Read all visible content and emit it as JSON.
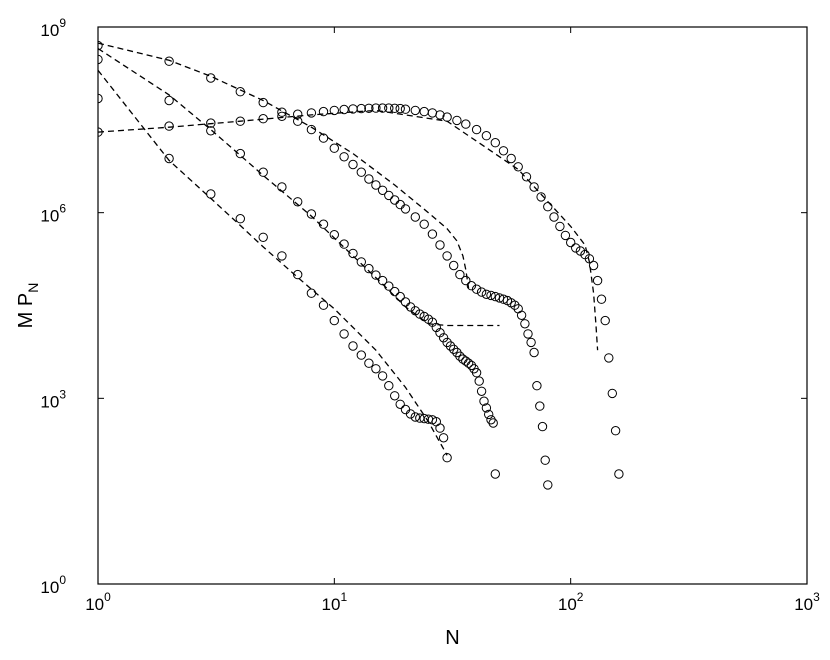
{
  "chart_data": {
    "type": "scatter",
    "title": "",
    "x_scale": "log",
    "y_scale": "log",
    "xlim": [
      1,
      1000
    ],
    "ylim": [
      1,
      1000000000
    ],
    "grid": false,
    "legend": "none",
    "xlabel": "N",
    "ylabel": {
      "main": "M P",
      "subscript": "N"
    },
    "x_ticks": [
      {
        "value": 1,
        "base": "10",
        "exp": "0"
      },
      {
        "value": 10,
        "base": "10",
        "exp": "1"
      },
      {
        "value": 100,
        "base": "10",
        "exp": "2"
      },
      {
        "value": 1000,
        "base": "10",
        "exp": "3"
      }
    ],
    "y_ticks": [
      {
        "value": 1,
        "base": "10",
        "exp": "0"
      },
      {
        "value": 1000,
        "base": "10",
        "exp": "3"
      },
      {
        "value": 1000000,
        "base": "10",
        "exp": "6"
      },
      {
        "value": 1000000000,
        "base": "10",
        "exp": "9"
      }
    ],
    "colors": {
      "markers": "#000000",
      "fit_lines": "#000000",
      "axes": "#000000"
    },
    "series": [
      {
        "style": "circles",
        "x": [
          1,
          2,
          3,
          4,
          5,
          6,
          7,
          8,
          9,
          10,
          11,
          12,
          13,
          14,
          15,
          16,
          17,
          18,
          19,
          20,
          21,
          22,
          23,
          24,
          25,
          26,
          27,
          28,
          29,
          30
        ],
        "y": [
          70000000,
          7500000,
          2000000,
          800000,
          400000,
          200000,
          100000,
          50000,
          32000,
          18000,
          11000,
          7000,
          5000,
          3700,
          3000,
          2300,
          1600,
          1100,
          800,
          660,
          560,
          500,
          480,
          470,
          460,
          450,
          420,
          330,
          230,
          110
        ]
      },
      {
        "style": "circles",
        "x": [
          1,
          2,
          3,
          4,
          5,
          6,
          7,
          8,
          9,
          10,
          11,
          12,
          13,
          14,
          15,
          16,
          17,
          18,
          19,
          20,
          21,
          22,
          23,
          24,
          25,
          26,
          27,
          28,
          29,
          30,
          31,
          32,
          33,
          34,
          35,
          36,
          37,
          38,
          39,
          40,
          41,
          42,
          43,
          44,
          45,
          46,
          47,
          48
        ],
        "y": [
          300000000,
          65000000,
          21000000,
          9000000,
          4500000,
          2600000,
          1500000,
          950000,
          650000,
          440000,
          310000,
          220000,
          160000,
          125000,
          98000,
          80000,
          65000,
          53000,
          44000,
          36000,
          30000,
          26000,
          23000,
          21000,
          19000,
          17000,
          14000,
          11500,
          9500,
          8000,
          7000,
          6200,
          5500,
          4800,
          4300,
          4000,
          3700,
          3400,
          3000,
          2600,
          1900,
          1300,
          900,
          700,
          550,
          450,
          400,
          60
        ]
      },
      {
        "style": "circles",
        "x": [
          1,
          2,
          3,
          4,
          5,
          6,
          7,
          8,
          9,
          10,
          11,
          12,
          13,
          14,
          15,
          16,
          17,
          18,
          19,
          20,
          22,
          24,
          26,
          28,
          30,
          32,
          34,
          36,
          38,
          40,
          42,
          44,
          46,
          48,
          50,
          52,
          54,
          56,
          58,
          60,
          62,
          64,
          66,
          68,
          70,
          72,
          74,
          76,
          78,
          80
        ],
        "y": [
          500000000,
          280000000,
          150000000,
          90000000,
          60000000,
          42000000,
          30000000,
          22000000,
          16000000,
          11000000,
          8000000,
          6000000,
          4500000,
          3500000,
          2800000,
          2300000,
          1900000,
          1600000,
          1350000,
          1150000,
          850000,
          650000,
          450000,
          300000,
          200000,
          140000,
          100000,
          80000,
          66000,
          58000,
          52000,
          48000,
          46000,
          44000,
          42000,
          40000,
          38000,
          35000,
          32000,
          28000,
          22000,
          16000,
          11000,
          8000,
          5500,
          1600,
          750,
          350,
          100,
          40
        ]
      },
      {
        "style": "circles",
        "x": [
          1,
          2,
          3,
          4,
          5,
          6,
          7,
          8,
          9,
          10,
          11,
          12,
          13,
          14,
          15,
          16,
          17,
          18,
          19,
          20,
          22,
          24,
          26,
          28,
          30,
          33,
          36,
          40,
          44,
          48,
          52,
          56,
          60,
          65,
          70,
          75,
          80,
          85,
          90,
          95,
          100,
          105,
          110,
          115,
          120,
          125,
          130,
          135,
          140,
          145,
          150,
          155,
          160
        ],
        "y": [
          20000000,
          25000000,
          28000000,
          30000000,
          33000000,
          36000000,
          39000000,
          41000000,
          43000000,
          45000000,
          46500000,
          47500000,
          48000000,
          48500000,
          49000000,
          49000000,
          49000000,
          48500000,
          48000000,
          47000000,
          45000000,
          43000000,
          41000000,
          38000000,
          35000000,
          31000000,
          27000000,
          22000000,
          17500000,
          13500000,
          10000000,
          7500000,
          5500000,
          3800000,
          2600000,
          1800000,
          1250000,
          850000,
          600000,
          430000,
          330000,
          270000,
          240000,
          210000,
          180000,
          140000,
          80000,
          40000,
          18000,
          4500,
          1200,
          300,
          60
        ]
      }
    ],
    "fit_lines": [
      {
        "style": "dashed",
        "x": [
          1,
          2,
          3,
          4,
          5,
          7,
          10,
          15,
          20,
          25,
          30
        ],
        "y": [
          200000000,
          7000000,
          1700000,
          620000,
          280000,
          90000,
          28000,
          6000,
          1500,
          420,
          120
        ]
      },
      {
        "style": "dashed",
        "x": [
          1,
          2,
          3,
          5,
          8,
          12,
          16,
          20,
          25,
          30,
          40,
          50
        ],
        "y": [
          450000000,
          80000000,
          22000000,
          4000000,
          880000,
          200000,
          70000,
          30000,
          16000,
          15000,
          15000,
          15000
        ]
      },
      {
        "style": "dashed",
        "x": [
          1,
          2,
          3,
          5,
          8,
          12,
          18,
          25,
          30,
          33,
          35,
          36,
          37
        ],
        "y": [
          550000000,
          290000000,
          160000000,
          65000000,
          24000000,
          9000000,
          2800000,
          1000000,
          550000,
          350000,
          200000,
          120000,
          60000
        ]
      },
      {
        "style": "dashed",
        "x": [
          1,
          2,
          4,
          8,
          15,
          30,
          60,
          100,
          115,
          120,
          125,
          128,
          130
        ],
        "y": [
          20000000,
          24000000,
          30000000,
          38000000,
          45000000,
          30000000,
          5000000,
          600000,
          300000,
          160000,
          50000,
          15000,
          6000
        ]
      }
    ]
  }
}
